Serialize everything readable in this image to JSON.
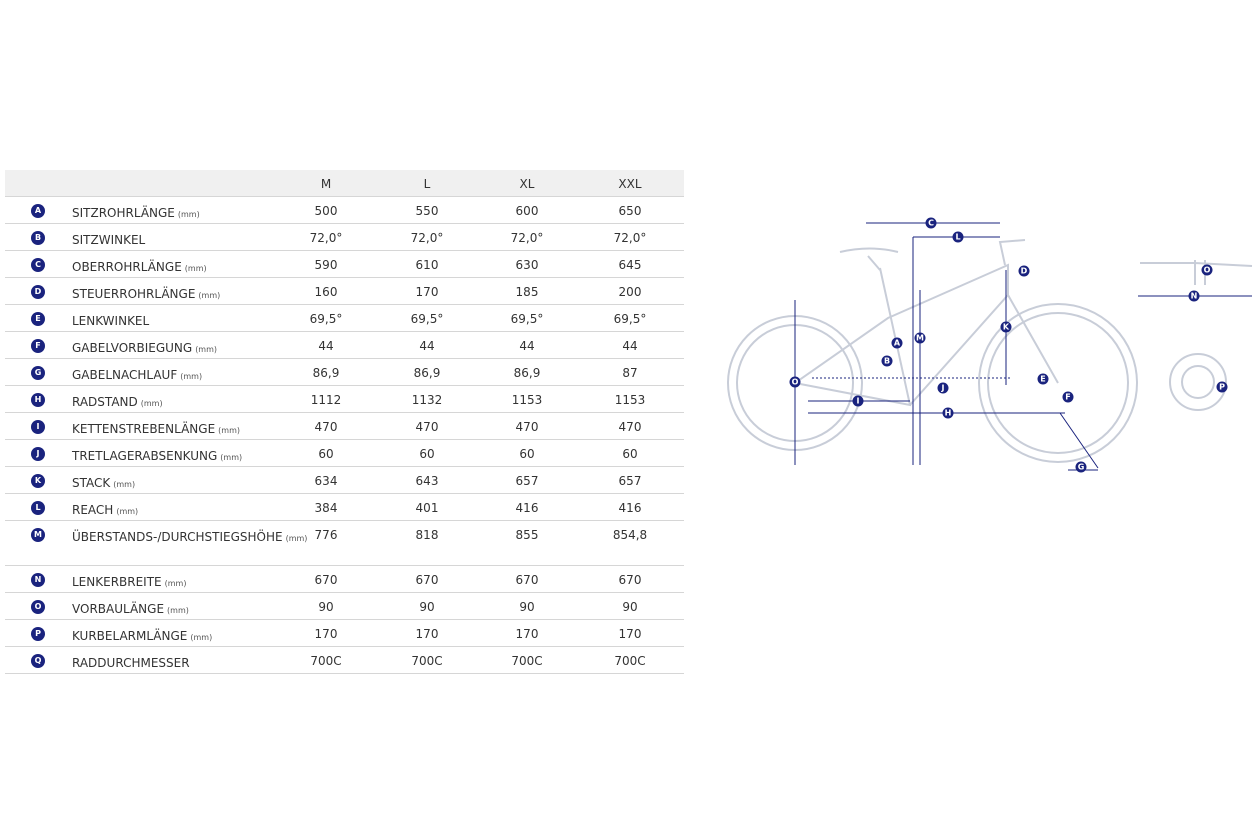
{
  "table": {
    "columns": [
      "M",
      "L",
      "XL",
      "XXL"
    ],
    "rows": [
      {
        "letter": "A",
        "name": "SITZROHRLÄNGE",
        "unit": "(mm)",
        "values": [
          "500",
          "550",
          "600",
          "650"
        ]
      },
      {
        "letter": "B",
        "name": "SITZWINKEL",
        "values": [
          "72,0°",
          "72,0°",
          "72,0°",
          "72,0°"
        ]
      },
      {
        "letter": "C",
        "name": "OBERROHRLÄNGE",
        "unit": "(mm)",
        "values": [
          "590",
          "610",
          "630",
          "645"
        ]
      },
      {
        "letter": "D",
        "name": "STEUERROHRLÄNGE",
        "unit": "(mm)",
        "values": [
          "160",
          "170",
          "185",
          "200"
        ]
      },
      {
        "letter": "E",
        "name": "LENKWINKEL",
        "values": [
          "69,5°",
          "69,5°",
          "69,5°",
          "69,5°"
        ]
      },
      {
        "letter": "F",
        "name": "GABELVORBIEGUNG",
        "unit": "(mm)",
        "values": [
          "44",
          "44",
          "44",
          "44"
        ]
      },
      {
        "letter": "G",
        "name": "GABELNACHLAUF",
        "unit": "(mm)",
        "values": [
          "86,9",
          "86,9",
          "86,9",
          "87"
        ]
      },
      {
        "letter": "H",
        "name": "RADSTAND",
        "unit": "(mm)",
        "values": [
          "1112",
          "1132",
          "1153",
          "1153"
        ]
      },
      {
        "letter": "I",
        "name": "KETTENSTREBENLÄNGE",
        "unit": "(mm)",
        "values": [
          "470",
          "470",
          "470",
          "470"
        ]
      },
      {
        "letter": "J",
        "name": "TRETLAGERABSENKUNG",
        "unit": "(mm)",
        "values": [
          "60",
          "60",
          "60",
          "60"
        ]
      },
      {
        "letter": "K",
        "name": "STACK",
        "unit": "(mm)",
        "values": [
          "634",
          "643",
          "657",
          "657"
        ]
      },
      {
        "letter": "L",
        "name": "REACH",
        "unit": "(mm)",
        "values": [
          "384",
          "401",
          "416",
          "416"
        ]
      },
      {
        "letter": "M",
        "name": "ÜBERSTANDS-/DURCHSTIEGSHÖHE",
        "unit": "(mm)",
        "values": [
          "776",
          "818",
          "855",
          "854,8"
        ]
      },
      {
        "letter": "N",
        "name": "LENKERBREITE",
        "unit": "(mm)",
        "values": [
          "670",
          "670",
          "670",
          "670"
        ]
      },
      {
        "letter": "O",
        "name": "VORBAULÄNGE",
        "unit": "(mm)",
        "values": [
          "90",
          "90",
          "90",
          "90"
        ]
      },
      {
        "letter": "P",
        "name": "KURBELARMLÄNGE",
        "unit": "(mm)",
        "values": [
          "170",
          "170",
          "170",
          "170"
        ]
      },
      {
        "letter": "Q",
        "name": "RADDURCHMESSER",
        "values": [
          "700C",
          "700C",
          "700C",
          "700C"
        ]
      }
    ]
  },
  "diagram": {
    "labels": [
      "C",
      "L",
      "D",
      "O",
      "N",
      "M",
      "K",
      "A",
      "B",
      "J",
      "E",
      "O",
      "F",
      "P",
      "I",
      "H",
      "G"
    ]
  }
}
